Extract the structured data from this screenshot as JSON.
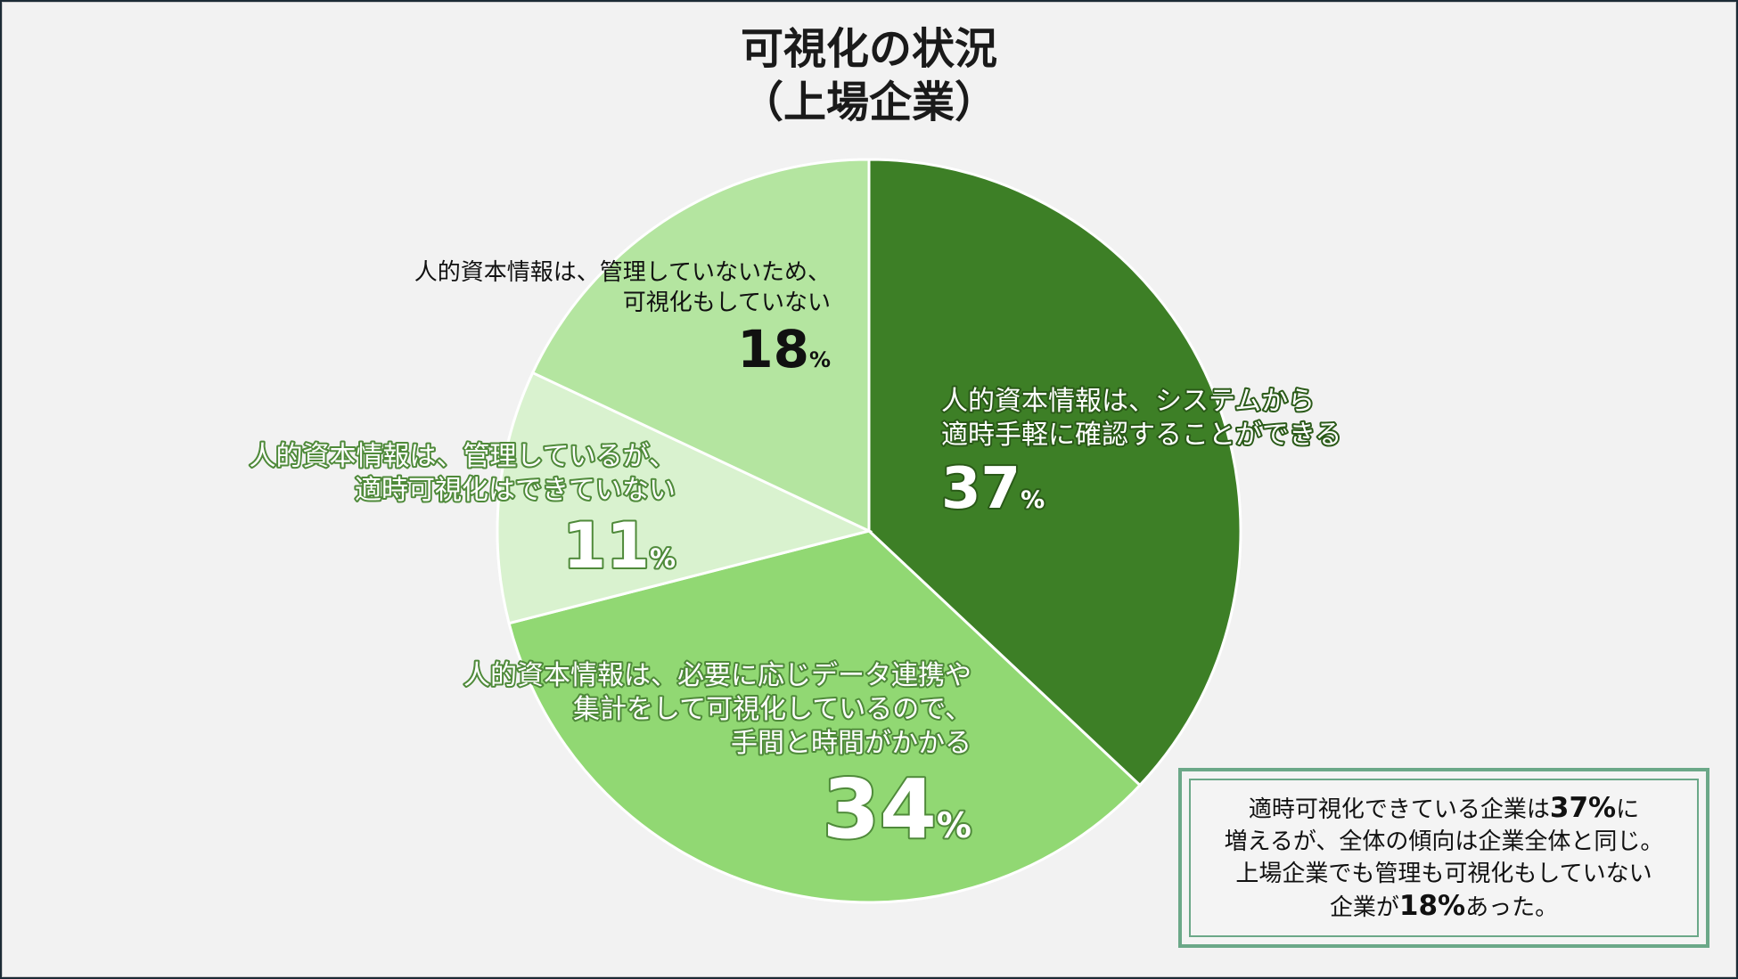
{
  "title_line1": "可視化の状況",
  "title_line2": "（上場企業）",
  "chart_data": {
    "type": "pie",
    "start_angle_deg": 0,
    "direction": "clockwise",
    "unit": "%",
    "slices": [
      {
        "label_lines": [
          "人的資本情報は、システムから",
          "適時手軽に確認することができる"
        ],
        "value": 37,
        "color": "#3d7f26",
        "text_color": "#ffffff",
        "halo": "#2a5a18"
      },
      {
        "label_lines": [
          "人的資本情報は、必要に応じデータ連携や",
          "集計をして可視化しているので、",
          "手間と時間がかかる"
        ],
        "value": 34,
        "color": "#91d873",
        "text_color": "#ffffff",
        "halo": "#4f8a3a"
      },
      {
        "label_lines": [
          "人的資本情報は、管理しているが、",
          "適時可視化はできていない"
        ],
        "value": 11,
        "color": "#d9f2cf",
        "text_color": "#ffffff",
        "halo": "#4f8a3a"
      },
      {
        "label_lines": [
          "人的資本情報は、管理していないため、",
          "可視化もしていない"
        ],
        "value": 18,
        "color": "#b4e5a0",
        "text_color": "#111111",
        "halo": "none"
      }
    ]
  },
  "callout": {
    "line1_pre": "適時可視化できている企業は",
    "line1_bold": "37%",
    "line1_post": "に",
    "line2": "増えるが、全体の傾向は企業全体と同じ。",
    "line3": "上場企業でも管理も可視化もしていない",
    "line4_pre": "企業が",
    "line4_bold": "18%",
    "line4_post": "あった。"
  }
}
